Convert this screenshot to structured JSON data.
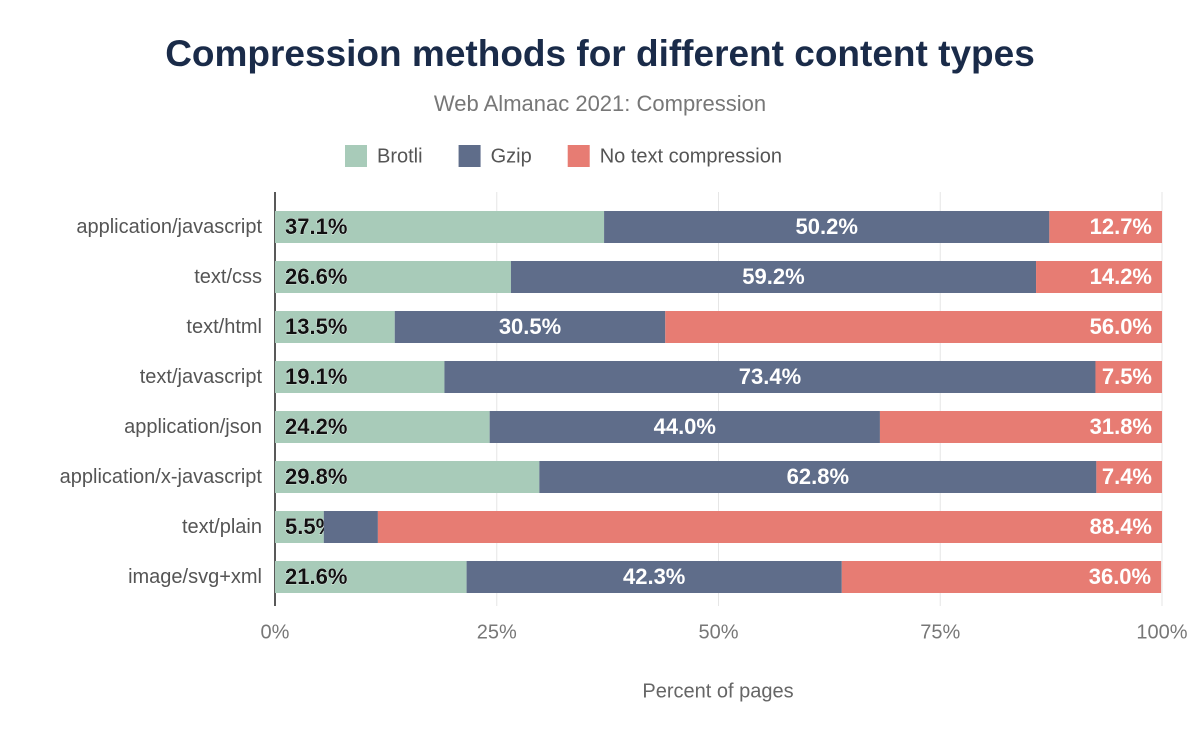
{
  "chart_data": {
    "type": "stacked-bar-horizontal",
    "title": "Compression methods for different content types",
    "subtitle": "Web Almanac 2021: Compression",
    "x_label": "Percent of pages",
    "categories": [
      "application/javascript",
      "text/css",
      "text/html",
      "text/javascript",
      "application/json",
      "application/x-javascript",
      "text/plain",
      "image/svg+xml"
    ],
    "series": [
      {
        "name": "Brotli",
        "color": "#a8cbb9",
        "values": [
          37.1,
          26.6,
          13.5,
          19.1,
          24.2,
          29.8,
          5.5,
          21.6
        ],
        "value_labels": [
          "37.1%",
          "26.6%",
          "13.5%",
          "19.1%",
          "24.2%",
          "29.8%",
          "5.5%",
          "21.6%"
        ]
      },
      {
        "name": "Gzip",
        "color": "#5f6d8a",
        "values": [
          50.2,
          59.2,
          30.5,
          73.4,
          44.0,
          62.8,
          6.1,
          42.3
        ],
        "value_labels": [
          "50.2%",
          "59.2%",
          "30.5%",
          "73.4%",
          "44.0%",
          "62.8%",
          null,
          "42.3%"
        ]
      },
      {
        "name": "No text compression",
        "color": "#e77c73",
        "values": [
          12.7,
          14.2,
          56.0,
          7.5,
          31.8,
          7.4,
          88.4,
          36.0
        ],
        "value_labels": [
          "12.7%",
          "14.2%",
          "56.0%",
          "7.5%",
          "31.8%",
          "7.4%",
          "88.4%",
          "36.0%"
        ]
      }
    ],
    "xlim": [
      0,
      100
    ],
    "xticks": [
      {
        "value": 0,
        "label": "0%"
      },
      {
        "value": 25,
        "label": "25%"
      },
      {
        "value": 50,
        "label": "50%"
      },
      {
        "value": 75,
        "label": "75%"
      },
      {
        "value": 100,
        "label": "100%"
      }
    ],
    "grid": true
  }
}
